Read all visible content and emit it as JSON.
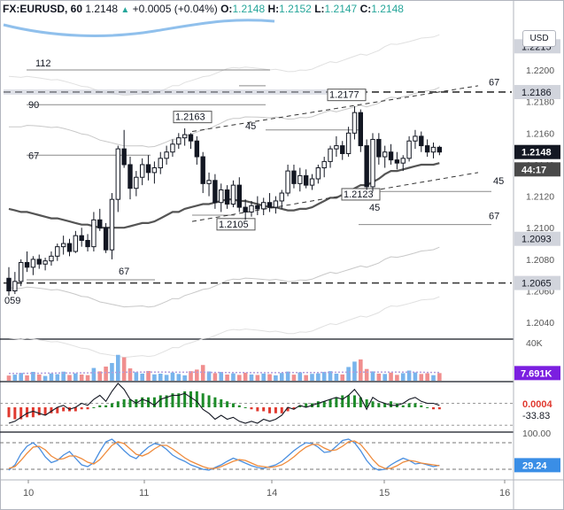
{
  "header": {
    "symbol": "FX:EURUSD, 60",
    "last": "1.2148",
    "change_arrow": "▲",
    "change": "+0.0005 (+0.04%)",
    "o_label": "O:",
    "o_value": "1.2148",
    "h_label": "H:",
    "h_value": "1.2152",
    "l_label": "L:",
    "l_value": "1.2147",
    "c_label": "C:",
    "c_value": "1.2148"
  },
  "currency_button": "USD",
  "colors": {
    "up": "#26a69a",
    "down": "#ef5350",
    "candle": "#131722",
    "ma": "#555555",
    "band": "#c8c8c8",
    "bluecurve": "#90c0ec",
    "vol_up": "#78b4ec",
    "vol_down": "#f08e8e",
    "stoch_k": "#4a8fe0",
    "stoch_d": "#ef8b3c",
    "macd_pos": "#1e8c2a",
    "macd_neg": "#e0392f"
  },
  "chart_data": [
    {
      "type": "candlestick",
      "name": "price",
      "x_tick_labels": [
        "10",
        "11",
        "14",
        "15",
        "16"
      ],
      "y_tick_labels": [
        "1.2040",
        "1.2060",
        "1.2080",
        "1.2100",
        "1.2120",
        "1.2140",
        "1.2160",
        "1.2180",
        "1.2200",
        "1.2220"
      ],
      "ylim": [
        1.203,
        1.2232
      ],
      "candles": [
        [
          1.2068,
          1.2075,
          1.2057,
          1.206
        ],
        [
          1.206,
          1.2072,
          1.2058,
          1.2066
        ],
        [
          1.2066,
          1.208,
          1.2063,
          1.2078
        ],
        [
          1.2078,
          1.2085,
          1.2072,
          1.2075
        ],
        [
          1.2075,
          1.2082,
          1.207,
          1.208
        ],
        [
          1.208,
          1.2083,
          1.2074,
          1.2077
        ],
        [
          1.2077,
          1.2081,
          1.2073,
          1.2079
        ],
        [
          1.2079,
          1.2085,
          1.2076,
          1.2082
        ],
        [
          1.2082,
          1.209,
          1.2079,
          1.2088
        ],
        [
          1.2088,
          1.2095,
          1.2083,
          1.209
        ],
        [
          1.209,
          1.2093,
          1.2082,
          1.2085
        ],
        [
          1.2085,
          1.2098,
          1.2084,
          1.2095
        ],
        [
          1.2095,
          1.21,
          1.2088,
          1.2092
        ],
        [
          1.2092,
          1.2096,
          1.2085,
          1.2088
        ],
        [
          1.2088,
          1.211,
          1.2085,
          1.2105
        ],
        [
          1.2105,
          1.2112,
          1.2098,
          1.21
        ],
        [
          1.21,
          1.2103,
          1.2084,
          1.2086
        ],
        [
          1.2086,
          1.2122,
          1.208,
          1.2118
        ],
        [
          1.2118,
          1.2152,
          1.211,
          1.215
        ],
        [
          1.215,
          1.2162,
          1.2138,
          1.214
        ],
        [
          1.214,
          1.2145,
          1.2118,
          1.2125
        ],
        [
          1.2125,
          1.2136,
          1.212,
          1.2132
        ],
        [
          1.2132,
          1.2144,
          1.2127,
          1.214
        ],
        [
          1.214,
          1.2146,
          1.213,
          1.2135
        ],
        [
          1.2135,
          1.2142,
          1.2128,
          1.2138
        ],
        [
          1.2138,
          1.2148,
          1.2134,
          1.2144
        ],
        [
          1.2144,
          1.2152,
          1.214,
          1.2148
        ],
        [
          1.2148,
          1.2156,
          1.2145,
          1.2153
        ],
        [
          1.2153,
          1.216,
          1.215,
          1.2157
        ],
        [
          1.2157,
          1.2163,
          1.2152,
          1.2159
        ],
        [
          1.2159,
          1.216,
          1.215,
          1.2155
        ],
        [
          1.2155,
          1.2158,
          1.214,
          1.2145
        ],
        [
          1.2145,
          1.2148,
          1.2122,
          1.2128
        ],
        [
          1.2128,
          1.2135,
          1.212,
          1.213
        ],
        [
          1.213,
          1.2134,
          1.2112,
          1.2116
        ],
        [
          1.2116,
          1.2128,
          1.211,
          1.2124
        ],
        [
          1.2124,
          1.2127,
          1.2112,
          1.2115
        ],
        [
          1.2115,
          1.213,
          1.2113,
          1.2127
        ],
        [
          1.2127,
          1.2132,
          1.211,
          1.2113
        ],
        [
          1.2113,
          1.2118,
          1.2105,
          1.211
        ],
        [
          1.211,
          1.2117,
          1.2107,
          1.2114
        ],
        [
          1.2114,
          1.212,
          1.2108,
          1.2112
        ],
        [
          1.2112,
          1.2119,
          1.2108,
          1.2116
        ],
        [
          1.2116,
          1.2122,
          1.211,
          1.2113
        ],
        [
          1.2113,
          1.212,
          1.2109,
          1.2117
        ],
        [
          1.2117,
          1.2124,
          1.2112,
          1.2122
        ],
        [
          1.2122,
          1.214,
          1.212,
          1.2136
        ],
        [
          1.2136,
          1.214,
          1.2125,
          1.2128
        ],
        [
          1.2128,
          1.2138,
          1.2123,
          1.2133
        ],
        [
          1.2133,
          1.2137,
          1.2125,
          1.2127
        ],
        [
          1.2127,
          1.2134,
          1.2124,
          1.2131
        ],
        [
          1.2131,
          1.214,
          1.2128,
          1.2138
        ],
        [
          1.2138,
          1.2145,
          1.2132,
          1.2142
        ],
        [
          1.2142,
          1.2152,
          1.2138,
          1.215
        ],
        [
          1.215,
          1.2158,
          1.2145,
          1.2152
        ],
        [
          1.2152,
          1.2155,
          1.2143,
          1.2147
        ],
        [
          1.2147,
          1.2164,
          1.2145,
          1.216
        ],
        [
          1.216,
          1.2177,
          1.2156,
          1.2173
        ],
        [
          1.2173,
          1.2175,
          1.2148,
          1.2152
        ],
        [
          1.2152,
          1.2156,
          1.2124,
          1.2126
        ],
        [
          1.2126,
          1.216,
          1.2123,
          1.2156
        ],
        [
          1.2156,
          1.216,
          1.214,
          1.2145
        ],
        [
          1.2145,
          1.2152,
          1.2138,
          1.2148
        ],
        [
          1.2148,
          1.2153,
          1.214,
          1.2143
        ],
        [
          1.2143,
          1.2148,
          1.2137,
          1.2141
        ],
        [
          1.2141,
          1.2146,
          1.2136,
          1.2144
        ],
        [
          1.2144,
          1.2158,
          1.2142,
          1.2155
        ],
        [
          1.2155,
          1.2162,
          1.215,
          1.2158
        ],
        [
          1.2158,
          1.2161,
          1.2148,
          1.2152
        ],
        [
          1.2152,
          1.2156,
          1.2145,
          1.2148
        ],
        [
          1.2148,
          1.2154,
          1.2144,
          1.2151
        ],
        [
          1.2151,
          1.2152,
          1.2146,
          1.2148
        ]
      ],
      "moving_average": [
        1.2112,
        1.2111,
        1.211,
        1.2109,
        1.2108,
        1.2107,
        1.2106,
        1.2105,
        1.2104,
        1.2103,
        1.2102,
        1.2101,
        1.21,
        1.21,
        1.21,
        1.21,
        1.2101,
        1.2102,
        1.2103,
        1.2104,
        1.2106,
        1.2108,
        1.211,
        1.2112,
        1.2113,
        1.2114,
        1.2115,
        1.2116,
        1.2117,
        1.2118,
        1.2118,
        1.2117,
        1.2116,
        1.2115,
        1.2114,
        1.2113,
        1.2112,
        1.2111,
        1.2111,
        1.2112,
        1.2113,
        1.2115,
        1.2117,
        1.2119,
        1.2121,
        1.2123,
        1.2125,
        1.2127,
        1.2129,
        1.2131,
        1.2134,
        1.2136,
        1.2137,
        1.2138,
        1.2139,
        1.214,
        1.214,
        1.2141
      ],
      "dashed_levels": [
        1.2186,
        1.2065
      ],
      "horizontal_labels": [
        {
          "text": "112",
          "price": 1.22
        },
        {
          "text": "90",
          "price": 1.2178
        },
        {
          "text": "1.2177",
          "price": 1.2177
        },
        {
          "text": "1.2163",
          "price": 1.2163
        },
        {
          "text": "45",
          "price": 1.2162
        },
        {
          "text": "67",
          "price": 1.2146
        },
        {
          "text": "67",
          "price": 1.219
        },
        {
          "text": "45",
          "price": 1.2123
        },
        {
          "text": "1.2123",
          "price": 1.2123
        },
        {
          "text": "1.2105",
          "price": 1.2105
        },
        {
          "text": "45",
          "price": 1.2113
        },
        {
          "text": "67",
          "price": 1.2102
        },
        {
          "text": "67",
          "price": 1.2067
        },
        {
          "text": "059",
          "price": 1.2059
        }
      ],
      "price_tags": [
        {
          "text": "1.2215",
          "price": 1.2215,
          "style": "gray"
        },
        {
          "text": "1.2186",
          "price": 1.2186,
          "style": "gray"
        },
        {
          "text": "1.2148",
          "price": 1.2148,
          "style": "dark"
        },
        {
          "text": "44:17",
          "price": 1.2137,
          "style": "darkgray"
        },
        {
          "text": "1.2093",
          "price": 1.2093,
          "style": "gray"
        },
        {
          "text": "1.2065",
          "price": 1.2065,
          "style": "gray"
        }
      ]
    },
    {
      "type": "bar",
      "name": "volume",
      "y_tick_labels": [
        "40K"
      ],
      "current_value_label": "7.691K",
      "ylim": [
        0,
        40000
      ],
      "values": [
        5200,
        6100,
        7800,
        5400,
        8900,
        6200,
        4800,
        7300,
        6600,
        9100,
        5800,
        7400,
        6200,
        5600,
        12800,
        9400,
        14200,
        17800,
        26000,
        23500,
        12400,
        8600,
        7200,
        9800,
        6400,
        7100,
        5900,
        8200,
        6800,
        5400,
        9600,
        11200,
        15800,
        9300,
        7600,
        8800,
        6200,
        7400,
        5900,
        8100,
        6300,
        5800,
        7200,
        6600,
        5400,
        7800,
        9200,
        6100,
        8400,
        5700,
        6900,
        7400,
        8800,
        9600,
        7100,
        6300,
        13800,
        19200,
        21400,
        11800,
        9400,
        7200,
        6800,
        8200,
        5900,
        7600,
        10200,
        8400,
        6800,
        7500,
        5600,
        7691
      ],
      "average": [
        7400,
        7400,
        7400,
        7500,
        7500,
        7500,
        7600,
        7600,
        7700,
        7700,
        7800,
        7800,
        7900,
        7900,
        8000,
        8100,
        8200,
        8300,
        8400,
        8500,
        8600,
        8600,
        8700,
        8700,
        8700,
        8700,
        8600,
        8600,
        8500,
        8500,
        8500,
        8500,
        8500,
        8400,
        8400,
        8300,
        8300,
        8300,
        8200,
        8200,
        8100,
        8100,
        8100,
        8100,
        8100,
        8200,
        8200,
        8200,
        8300,
        8300,
        8300,
        8300,
        8400,
        8400,
        8500,
        8500,
        8600,
        8600,
        8700,
        8700,
        8700,
        8700,
        8700,
        8600,
        8600,
        8600,
        8500,
        8500,
        8500,
        8400,
        8400,
        8400
      ]
    },
    {
      "type": "bar",
      "name": "macd",
      "labels": [
        "0.0004",
        "-33.83"
      ],
      "ylim": [
        -0.0012,
        0.0012
      ],
      "histogram": [
        -0.0005,
        -0.0006,
        -0.0006,
        -0.0005,
        -0.0005,
        -0.0004,
        -0.0004,
        -0.0003,
        -0.0003,
        -0.0002,
        -0.0002,
        -0.0002,
        -0.0001,
        -0.0001,
        0.0,
        0.0001,
        0.0001,
        0.0002,
        0.0003,
        0.0004,
        0.0004,
        0.0004,
        0.0005,
        0.0005,
        0.0005,
        0.0006,
        0.0006,
        0.0007,
        0.0007,
        0.0008,
        0.0008,
        0.0008,
        0.0007,
        0.0006,
        0.0005,
        0.0004,
        0.0003,
        0.0002,
        0.0001,
        0.0,
        -0.0001,
        -0.0002,
        -0.0002,
        -0.0003,
        -0.0003,
        -0.0003,
        -0.0002,
        -0.0001,
        0.0001,
        0.0002,
        0.0002,
        0.0003,
        0.0003,
        0.0004,
        0.0005,
        0.0006,
        0.0006,
        0.0006,
        0.0005,
        0.0004,
        0.0003,
        0.0002,
        0.0002,
        0.0003,
        0.0002,
        0.0001,
        0.0002,
        0.0002,
        0.0001,
        0.0,
        -0.0001,
        -0.0001
      ],
      "line": [
        -0.0008,
        -0.0007,
        -0.0005,
        -0.0003,
        -0.0002,
        -0.0003,
        -0.0004,
        -0.0002,
        0.0,
        0.0001,
        -0.0001,
        0.0,
        0.0002,
        0.0001,
        0.0004,
        0.0006,
        0.0003,
        0.0008,
        0.0012,
        0.0009,
        0.0004,
        0.0002,
        0.0004,
        0.0003,
        0.0001,
        0.0004,
        0.0005,
        0.0006,
        0.0006,
        0.0007,
        0.0005,
        0.0003,
        -0.0001,
        -0.0003,
        -0.0006,
        -0.0004,
        -0.0006,
        -0.0005,
        -0.0007,
        -0.0008,
        -0.0007,
        -0.0008,
        -0.0006,
        -0.0007,
        -0.0006,
        -0.0004,
        0.0,
        -0.0001,
        0.0001,
        0.0,
        0.0001,
        0.0002,
        0.0003,
        0.0004,
        0.0005,
        0.0004,
        0.0006,
        0.0009,
        0.0005,
        -0.0001,
        0.0005,
        0.0003,
        0.0002,
        0.0001,
        0.0001,
        0.0002,
        0.0004,
        0.0005,
        0.0003,
        0.0002,
        0.0002,
        0.0001
      ]
    },
    {
      "type": "line",
      "name": "stochastic",
      "y_tick_labels": [
        "100.00"
      ],
      "current_value_label": "29.24",
      "ylim": [
        0,
        100
      ],
      "series": [
        {
          "values": [
            18,
            30,
            55,
            72,
            80,
            68,
            48,
            35,
            40,
            52,
            60,
            45,
            30,
            26,
            35,
            60,
            82,
            88,
            76,
            62,
            50,
            44,
            58,
            70,
            78,
            75,
            65,
            52,
            44,
            38,
            30,
            25,
            20,
            18,
            24,
            30,
            38,
            45,
            40,
            34,
            28,
            24,
            22,
            26,
            30,
            38,
            50,
            62,
            72,
            80,
            78,
            70,
            58,
            60,
            72,
            85,
            88,
            80,
            62,
            40,
            24,
            18,
            20,
            30,
            38,
            45,
            40,
            32,
            34,
            30,
            26,
            29
          ]
        },
        {
          "values": [
            22,
            26,
            40,
            56,
            70,
            72,
            64,
            50,
            42,
            44,
            50,
            50,
            44,
            36,
            32,
            42,
            58,
            74,
            82,
            78,
            66,
            54,
            50,
            56,
            66,
            74,
            74,
            66,
            56,
            46,
            38,
            32,
            26,
            22,
            22,
            26,
            32,
            38,
            42,
            40,
            34,
            28,
            26,
            24,
            26,
            30,
            38,
            48,
            60,
            70,
            76,
            76,
            68,
            62,
            64,
            72,
            82,
            84,
            76,
            60,
            42,
            28,
            22,
            22,
            28,
            36,
            40,
            38,
            34,
            32,
            30,
            28
          ]
        }
      ]
    }
  ]
}
